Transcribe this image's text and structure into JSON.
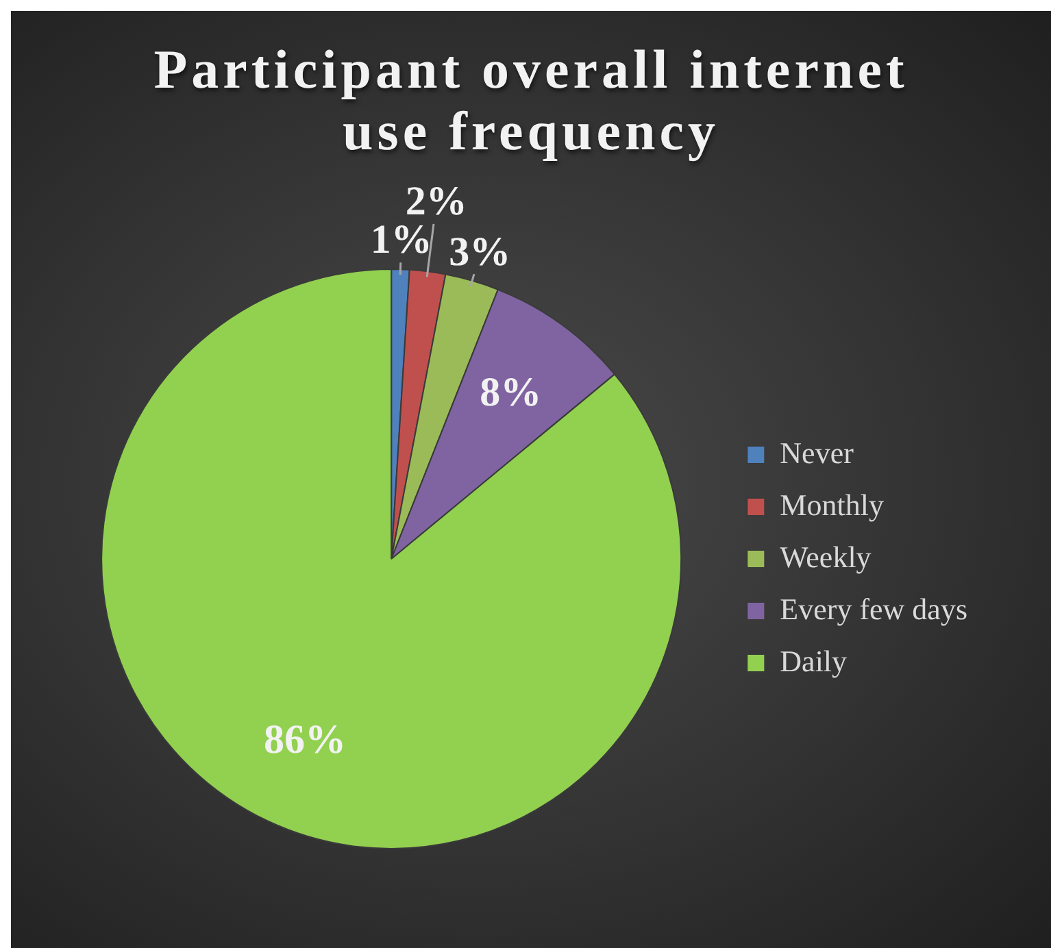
{
  "chart_data": {
    "type": "pie",
    "title": "Participant overall internet use frequency",
    "categories": [
      "Never",
      "Monthly",
      "Weekly",
      "Every few days",
      "Daily"
    ],
    "values": [
      1,
      2,
      3,
      8,
      86
    ],
    "colors": [
      "#4f81bd",
      "#c0504d",
      "#9bbb59",
      "#8064a2",
      "#92d050"
    ],
    "value_labels": [
      "1%",
      "2%",
      "3%",
      "8%",
      "86%"
    ],
    "legend": "right"
  }
}
